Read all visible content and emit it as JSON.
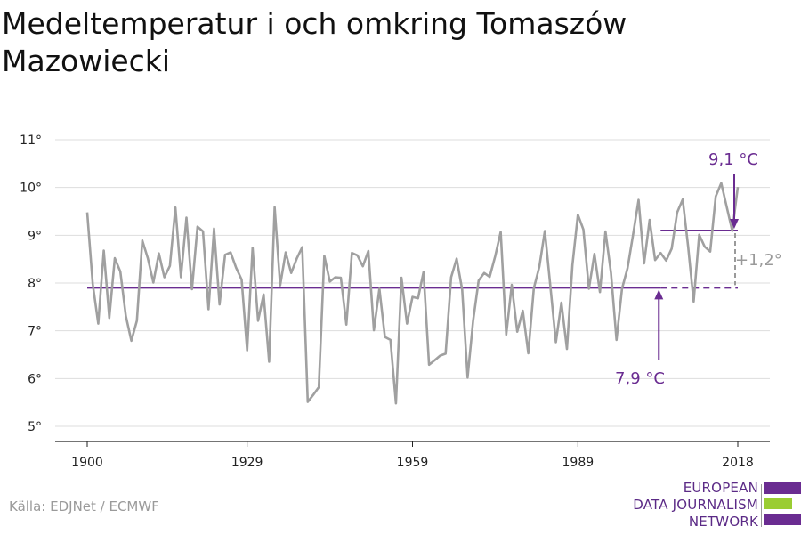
{
  "title": "Medeltemperatur i och omkring Tomaszów Mazowiecki",
  "source": "Källa: EDJNet / ECMWF",
  "logo": {
    "line1": "EUROPEAN",
    "line2": "DATA JOURNALISM",
    "line3": "NETWORK"
  },
  "colors": {
    "series": "#a0a0a0",
    "accent": "#6a2c91",
    "logo_green": "#9acd32",
    "grid": "#dddddd",
    "delta": "#9a9a9a"
  },
  "chart_data": {
    "type": "line",
    "title": "Medeltemperatur i och omkring Tomaszów Mazowiecki",
    "xlabel": "",
    "ylabel": "",
    "xlim": [
      1900,
      2019
    ],
    "ylim": [
      4.7,
      11.2
    ],
    "x_ticks": [
      1900,
      1929,
      1959,
      1989,
      2018
    ],
    "y_ticks": [
      5,
      6,
      7,
      8,
      9,
      10,
      11
    ],
    "y_tick_labels": [
      "5°",
      "6°",
      "7°",
      "8°",
      "9°",
      "10°",
      "11°"
    ],
    "grid": "horizontal",
    "series": [
      {
        "x": [
          1900,
          1901,
          1902,
          1903,
          1904,
          1905,
          1906,
          1907,
          1908,
          1909,
          1910,
          1911,
          1912,
          1913,
          1914,
          1915,
          1916,
          1917,
          1918,
          1919,
          1920,
          1921,
          1922,
          1923,
          1924,
          1925,
          1926,
          1927,
          1928,
          1929,
          1930,
          1931,
          1932,
          1933,
          1934,
          1935,
          1936,
          1937,
          1938,
          1939,
          1940,
          1941,
          1942,
          1943,
          1944,
          1945,
          1946,
          1947,
          1948,
          1949,
          1950,
          1951,
          1952,
          1953,
          1954,
          1955,
          1956,
          1957,
          1958,
          1959,
          1960,
          1961,
          1962,
          1963,
          1964,
          1965,
          1966,
          1967,
          1968,
          1969,
          1970,
          1971,
          1972,
          1973,
          1974,
          1975,
          1976,
          1977,
          1978,
          1979,
          1980,
          1981,
          1982,
          1983,
          1984,
          1985,
          1986,
          1987,
          1988,
          1989,
          1990,
          1991,
          1992,
          1993,
          1994,
          1995,
          1996,
          1997,
          1998,
          1999,
          2000,
          2001,
          2002,
          2003,
          2004,
          2005,
          2006,
          2007,
          2008,
          2009,
          2010,
          2011,
          2012,
          2013,
          2014,
          2015,
          2016,
          2017,
          2018
        ],
        "y": [
          9.48,
          7.98,
          7.15,
          8.68,
          7.27,
          8.52,
          8.24,
          7.31,
          6.79,
          7.21,
          8.89,
          8.52,
          8.01,
          8.62,
          8.12,
          8.36,
          9.58,
          8.12,
          9.37,
          7.87,
          9.18,
          9.08,
          7.45,
          9.14,
          7.55,
          8.59,
          8.64,
          8.32,
          8.07,
          6.59,
          8.74,
          7.21,
          7.76,
          6.35,
          9.59,
          7.95,
          8.64,
          8.21,
          8.51,
          8.75,
          5.51,
          5.66,
          5.82,
          8.57,
          8.03,
          8.12,
          8.11,
          7.13,
          8.63,
          8.58,
          8.35,
          8.67,
          7.01,
          7.88,
          6.87,
          6.81,
          5.48,
          8.11,
          7.15,
          7.71,
          7.68,
          8.23,
          6.29,
          6.38,
          6.48,
          6.52,
          8.12,
          8.51,
          7.86,
          6.02,
          7.21,
          8.05,
          8.21,
          8.13,
          8.56,
          9.07,
          6.92,
          7.96,
          6.98,
          7.42,
          6.53,
          7.89,
          8.34,
          9.09,
          7.93,
          6.76,
          7.59,
          6.62,
          8.38,
          9.43,
          9.12,
          7.88,
          8.61,
          7.81,
          9.08,
          8.21,
          6.81,
          7.88,
          8.31,
          9.01,
          9.74,
          8.41,
          9.32,
          8.48,
          8.63,
          8.47,
          8.72,
          9.48,
          9.75,
          8.76,
          7.61,
          9.01,
          8.76,
          8.66,
          9.81,
          10.09,
          9.59,
          9.09,
          10.01
        ]
      }
    ],
    "annotations": {
      "baseline": {
        "value": 7.9,
        "from": 1900,
        "to": 2018,
        "dashed_from": 2004,
        "label": "7,9 °C"
      },
      "recent": {
        "value": 9.1,
        "from": 2004,
        "to": 2018,
        "label": "9,1 °C"
      },
      "delta": {
        "label": "+1,2°"
      }
    }
  }
}
